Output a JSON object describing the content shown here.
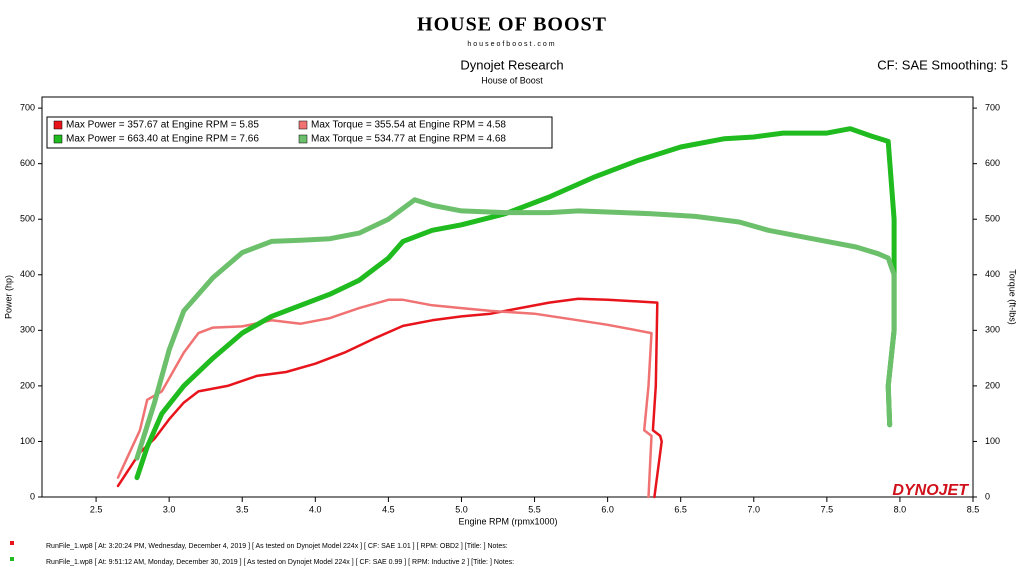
{
  "header": {
    "logo": "HOUSE OF BOOST",
    "logo_url": "houseofboost.com",
    "settings": "CF: SAE Smoothing: 5",
    "brand": "DYNOJET"
  },
  "chart_data": {
    "type": "line",
    "title": "Dynojet Research",
    "subtitle": "House of Boost",
    "x_label": "Engine RPM (rpmx1000)",
    "y_label": "Power (hp)",
    "y2_label": "Torque (ft-lbs)",
    "xlim": [
      2.13,
      8.5
    ],
    "ylim": [
      0,
      720
    ],
    "y2lim": [
      0,
      720
    ],
    "xticks": [
      {
        "value": 2.5,
        "label": "2.5"
      },
      {
        "value": 3,
        "label": "3.0"
      },
      {
        "value": 3.5,
        "label": "3.5"
      },
      {
        "value": 4,
        "label": "4.0"
      },
      {
        "value": 4.5,
        "label": "4.5"
      },
      {
        "value": 5,
        "label": "5.0"
      },
      {
        "value": 5.5,
        "label": "5.5"
      },
      {
        "value": 6,
        "label": "6.0"
      },
      {
        "value": 6.5,
        "label": "6.5"
      },
      {
        "value": 7,
        "label": "7.0"
      },
      {
        "value": 7.5,
        "label": "7.5"
      },
      {
        "value": 8,
        "label": "8.0"
      },
      {
        "value": 8.5,
        "label": "8.5"
      }
    ],
    "yticks": [
      0,
      100,
      200,
      300,
      400,
      500,
      600,
      700
    ],
    "y2ticks": [
      0,
      100,
      200,
      300,
      400,
      500,
      600,
      700
    ],
    "series": [
      {
        "name": "Max Power = 357.67 at Engine RPM = 5.85",
        "color": "#e8141b",
        "width": 2.5,
        "x": [
          2.65,
          2.8,
          2.9,
          3.0,
          3.1,
          3.2,
          3.4,
          3.6,
          3.8,
          4.0,
          4.2,
          4.4,
          4.6,
          4.8,
          5.0,
          5.2,
          5.4,
          5.6,
          5.8,
          6.0,
          6.2,
          6.34,
          6.33,
          6.31,
          6.36,
          6.37,
          6.32
        ],
        "values": [
          20,
          80,
          105,
          140,
          170,
          190,
          200,
          218,
          225,
          240,
          260,
          285,
          308,
          318,
          325,
          330,
          340,
          350,
          357,
          355,
          352,
          350,
          200,
          120,
          110,
          100,
          0
        ]
      },
      {
        "name": "Max Torque = 355.54 at Engine RPM = 4.58",
        "color": "#f07272",
        "width": 2.5,
        "axis": "y2",
        "x": [
          2.65,
          2.8,
          2.85,
          2.95,
          3.1,
          3.2,
          3.3,
          3.5,
          3.7,
          3.9,
          4.1,
          4.3,
          4.5,
          4.6,
          4.8,
          5.0,
          5.2,
          5.5,
          5.8,
          6.0,
          6.2,
          6.3,
          6.28,
          6.25,
          6.3,
          6.28
        ],
        "values": [
          35,
          120,
          175,
          190,
          260,
          295,
          305,
          307,
          318,
          312,
          322,
          340,
          355,
          355,
          345,
          340,
          335,
          330,
          318,
          310,
          300,
          295,
          200,
          120,
          110,
          0
        ]
      },
      {
        "name": "Max Power = 663.40 at Engine RPM = 7.66",
        "color": "#1fbb1f",
        "width": 5,
        "x": [
          2.78,
          2.85,
          2.95,
          3.1,
          3.3,
          3.5,
          3.7,
          3.9,
          4.1,
          4.3,
          4.5,
          4.6,
          4.8,
          5.0,
          5.3,
          5.6,
          5.9,
          6.2,
          6.5,
          6.8,
          7.0,
          7.2,
          7.5,
          7.66,
          7.8,
          7.92,
          7.96,
          7.96,
          7.92,
          7.93
        ],
        "values": [
          35,
          90,
          150,
          200,
          250,
          295,
          325,
          345,
          365,
          390,
          430,
          460,
          480,
          490,
          510,
          540,
          575,
          605,
          630,
          645,
          648,
          655,
          655,
          663,
          650,
          640,
          500,
          300,
          200,
          130
        ]
      },
      {
        "name": "Max Torque = 534.77 at Engine RPM = 4.68",
        "color": "#6cc06c",
        "width": 5,
        "axis": "y2",
        "x": [
          2.78,
          2.9,
          3.0,
          3.1,
          3.3,
          3.5,
          3.7,
          3.9,
          4.1,
          4.3,
          4.5,
          4.68,
          4.8,
          5.0,
          5.3,
          5.6,
          5.8,
          6.0,
          6.3,
          6.6,
          6.9,
          7.1,
          7.4,
          7.7,
          7.85,
          7.92,
          7.96,
          7.96,
          7.92,
          7.93
        ],
        "values": [
          70,
          170,
          265,
          335,
          395,
          440,
          460,
          462,
          465,
          475,
          500,
          535,
          525,
          515,
          512,
          512,
          515,
          513,
          510,
          505,
          495,
          480,
          465,
          450,
          438,
          430,
          400,
          300,
          200,
          130
        ]
      }
    ]
  },
  "footer": {
    "runs": [
      {
        "text": "RunFile_1.wp8  [ At:  3:20:24 PM, Wednesday, December 4, 2019 ]  [ As tested on Dynojet Model 224x ]  [ CF: SAE 1.01 ]  [ RPM: OBD2 ]  [Title:  ]   Notes:",
        "color": "#e8141b"
      },
      {
        "text": "RunFile_1.wp8  [ At:  9:51:12 AM, Monday, December 30, 2019 ]  [ As tested on Dynojet Model 224x ]  [ CF: SAE 0.99 ]  [ RPM: Inductive 2 ]  [Title:  ]   Notes:",
        "color": "#1fbb1f"
      }
    ]
  }
}
